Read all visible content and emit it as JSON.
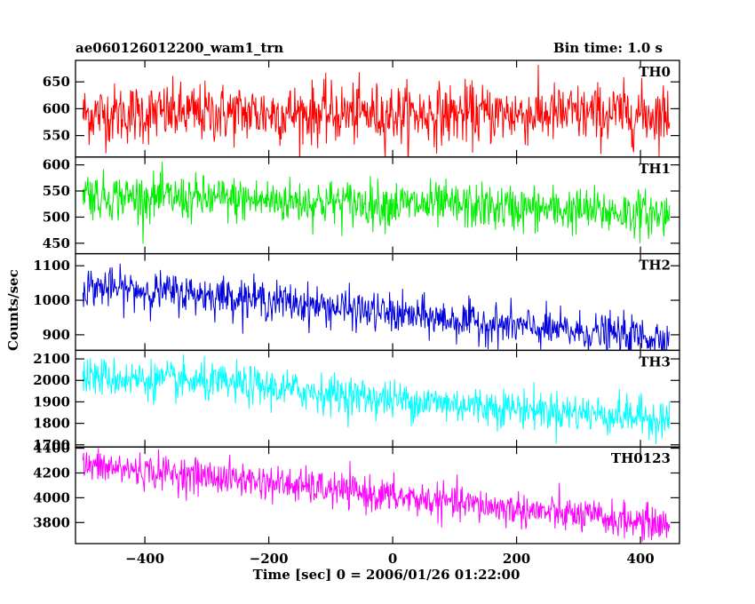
{
  "header": {
    "title": "ae060126012200_wam1_trn",
    "bin_time": "Bin time: 1.0 s"
  },
  "chart_data": {
    "type": "line",
    "xlabel": "Time [sec] 0 = 2006/01/26 01:22:00",
    "ylabel": "Counts/sec",
    "x_range": [
      -500,
      447
    ],
    "xlim": [
      -512,
      463
    ],
    "x_ticks": [
      -400,
      -200,
      0,
      200,
      400
    ],
    "grid": false,
    "series": [
      {
        "name": "TH0",
        "color": "#ff0000",
        "ylim": [
          510,
          690
        ],
        "y_ticks": [
          550,
          600,
          650
        ],
        "trend": [
          [
            -500,
            590
          ],
          [
            -250,
            592
          ],
          [
            0,
            590
          ],
          [
            250,
            590
          ],
          [
            447,
            590
          ]
        ],
        "noise_sd": 28
      },
      {
        "name": "TH1",
        "color": "#00ee00",
        "ylim": [
          430,
          615
        ],
        "y_ticks": [
          450,
          500,
          550,
          600
        ],
        "trend": [
          [
            -500,
            555
          ],
          [
            -480,
            540
          ],
          [
            -250,
            533
          ],
          [
            0,
            525
          ],
          [
            250,
            515
          ],
          [
            447,
            505
          ]
        ],
        "noise_sd": 22
      },
      {
        "name": "TH2",
        "color": "#0000dd",
        "ylim": [
          855,
          1135
        ],
        "y_ticks": [
          900,
          1000,
          1100
        ],
        "trend": [
          [
            -500,
            1040
          ],
          [
            -250,
            1010
          ],
          [
            0,
            960
          ],
          [
            250,
            915
          ],
          [
            447,
            890
          ]
        ],
        "noise_sd": 28
      },
      {
        "name": "TH3",
        "color": "#00ffff",
        "ylim": [
          1690,
          2140
        ],
        "y_ticks": [
          1700,
          1800,
          1900,
          2000,
          2100
        ],
        "trend": [
          [
            -500,
            2020
          ],
          [
            -250,
            1980
          ],
          [
            0,
            1910
          ],
          [
            250,
            1860
          ],
          [
            447,
            1820
          ]
        ],
        "noise_sd": 45
      },
      {
        "name": "TH0123",
        "color": "#ff00ff",
        "ylim": [
          3630,
          4410
        ],
        "y_ticks": [
          3800,
          4000,
          4200,
          4400
        ],
        "trend": [
          [
            -500,
            4260
          ],
          [
            -250,
            4150
          ],
          [
            0,
            4010
          ],
          [
            250,
            3880
          ],
          [
            447,
            3780
          ]
        ],
        "noise_sd": 70
      }
    ]
  }
}
